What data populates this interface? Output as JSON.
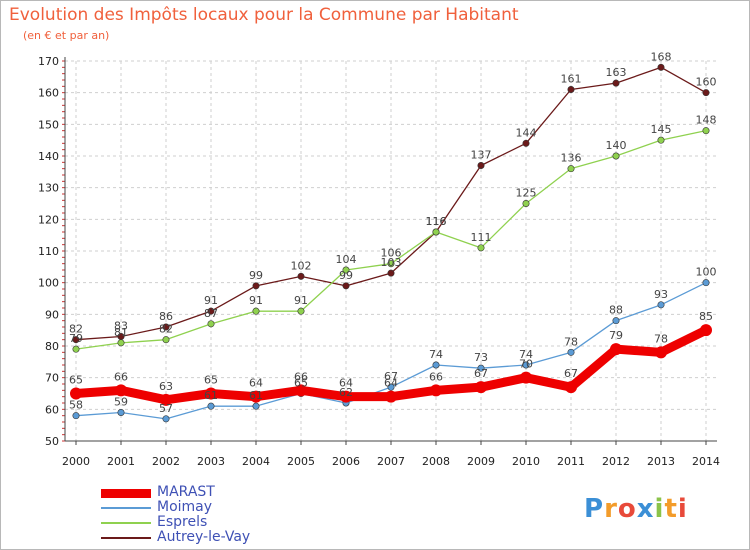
{
  "header": {
    "title": "Evolution des Impôts locaux pour la Commune par Habitant",
    "subtitle": "(en € et par an)"
  },
  "logo": {
    "text": "Proxiti"
  },
  "colors": {
    "title": "#f0603c",
    "grid": "#cfcfcf",
    "axis_tick": "#cc3333",
    "legend_text": "#3f51b5"
  },
  "chart_data": {
    "type": "line",
    "x": [
      "2000",
      "2001",
      "2002",
      "2003",
      "2004",
      "2005",
      "2006",
      "2007",
      "2008",
      "2009",
      "2010",
      "2011",
      "2012",
      "2013",
      "2014"
    ],
    "ylim": [
      50,
      170
    ],
    "yticks": [
      50,
      60,
      70,
      80,
      90,
      100,
      110,
      120,
      130,
      140,
      150,
      160,
      170
    ],
    "grid": true,
    "legend_position": "bottom-left",
    "series": [
      {
        "name": "MARAST",
        "color": "#ee0000",
        "values": [
          65,
          66,
          63,
          65,
          64,
          66,
          64,
          64,
          66,
          67,
          70,
          67,
          79,
          78,
          85
        ]
      },
      {
        "name": "Moimay",
        "color": "#5b9bd5",
        "values": [
          58,
          59,
          57,
          61,
          61,
          65,
          62,
          67,
          74,
          73,
          74,
          78,
          88,
          93,
          100
        ]
      },
      {
        "name": "Esprels",
        "color": "#8fd14f",
        "values": [
          79,
          81,
          82,
          87,
          91,
          91,
          104,
          106,
          116,
          111,
          125,
          136,
          140,
          145,
          148
        ]
      },
      {
        "name": "Autrey-le-Vay",
        "color": "#6b1a1a",
        "values": [
          82,
          83,
          86,
          91,
          99,
          102,
          99,
          103,
          116,
          137,
          144,
          161,
          163,
          168,
          160
        ]
      }
    ]
  }
}
